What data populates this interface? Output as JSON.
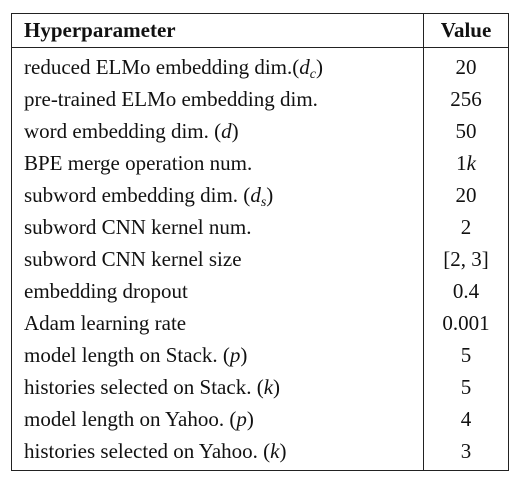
{
  "table": {
    "headers": [
      "Hyperparameter",
      "Value"
    ],
    "rows": [
      {
        "param": "reduced ELMo embedding dim.(d_c)",
        "param_text": "reduced ELMo embedding dim.(",
        "sym": "d",
        "sub": "c",
        "param_close": ")",
        "value": "20"
      },
      {
        "param": "pre-trained ELMo embedding dim.",
        "param_text": "pre-trained ELMo embedding dim.",
        "sym": "",
        "sub": "",
        "param_close": "",
        "value": "256"
      },
      {
        "param": "word embedding dim. (d)",
        "param_text": "word embedding dim. (",
        "sym": "d",
        "sub": "",
        "param_close": ")",
        "value": "50"
      },
      {
        "param": "BPE merge operation num.",
        "param_text": "BPE merge operation num.",
        "sym": "",
        "sub": "",
        "param_close": "",
        "value": "1k"
      },
      {
        "param": "subword embedding dim. (d_s)",
        "param_text": "subword embedding dim. (",
        "sym": "d",
        "sub": "s",
        "param_close": ")",
        "value": "20"
      },
      {
        "param": "subword CNN kernel num.",
        "param_text": "subword CNN kernel num.",
        "sym": "",
        "sub": "",
        "param_close": "",
        "value": "2"
      },
      {
        "param": "subword CNN kernel size",
        "param_text": "subword CNN kernel size",
        "sym": "",
        "sub": "",
        "param_close": "",
        "value": "[2, 3]"
      },
      {
        "param": "embedding dropout",
        "param_text": "embedding dropout",
        "sym": "",
        "sub": "",
        "param_close": "",
        "value": "0.4"
      },
      {
        "param": "Adam learning rate",
        "param_text": "Adam learning rate",
        "sym": "",
        "sub": "",
        "param_close": "",
        "value": "0.001"
      },
      {
        "param": "model length on Stack. (p)",
        "param_text": "model length on Stack. (",
        "sym": "p",
        "sub": "",
        "param_close": ")",
        "value": "5"
      },
      {
        "param": "histories selected on Stack. (k)",
        "param_text": "histories selected on Stack. (",
        "sym": "k",
        "sub": "",
        "param_close": ")",
        "value": "5"
      },
      {
        "param": "model length on Yahoo. (p)",
        "param_text": "model length on Yahoo. (",
        "sym": "p",
        "sub": "",
        "param_close": ")",
        "value": "4"
      },
      {
        "param": "histories selected on Yahoo. (k)",
        "param_text": "histories selected on Yahoo. (",
        "sym": "k",
        "sub": "",
        "param_close": ")",
        "value": "3"
      }
    ]
  }
}
